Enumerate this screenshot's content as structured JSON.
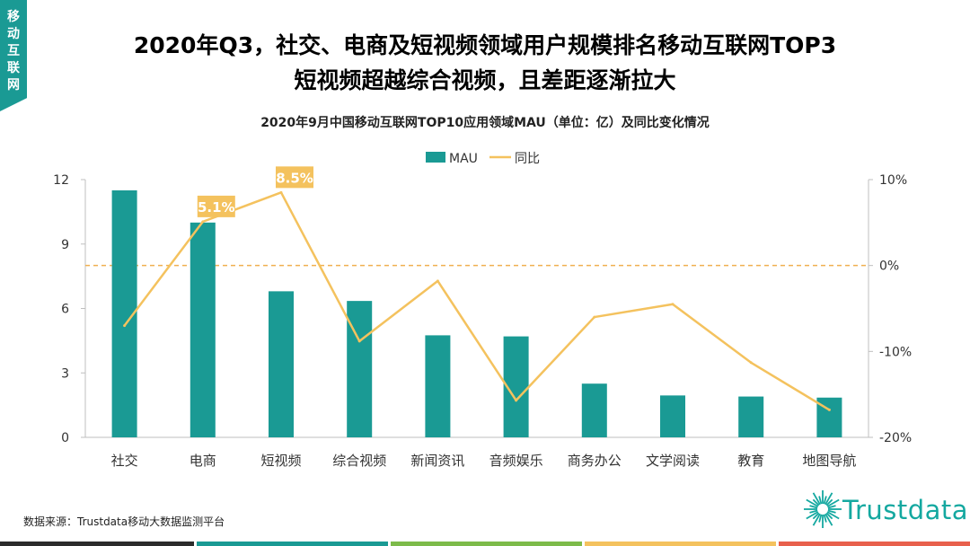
{
  "corner_tag": [
    "移",
    "动",
    "互",
    "联",
    "网"
  ],
  "headline_1": "2020年Q3，社交、电商及短视频领域用户规模排名移动互联网TOP3",
  "headline_2": "短视频超越综合视频，且差距逐渐拉大",
  "source": "数据来源：Trustdata移动大数据监测平台",
  "logo_text": "Trustdata",
  "colors": {
    "bar": "#1a9a94",
    "line": "#f4c25e",
    "label_bg": "#f4c25e",
    "zero_line": "#f0b050",
    "footer": [
      "#2b2b2b",
      "#1a9a94",
      "#7dbb4a",
      "#f4c25e",
      "#e8604c"
    ]
  },
  "chart_data": {
    "type": "bar",
    "title": "2020年9月中国移动互联网TOP10应用领域MAU（单位：亿）及同比变化情况",
    "categories": [
      "社交",
      "电商",
      "短视频",
      "综合视频",
      "新闻资讯",
      "音频娱乐",
      "商务办公",
      "文学阅读",
      "教育",
      "地图导航"
    ],
    "series": [
      {
        "name": "MAU",
        "type": "bar",
        "axis": "left",
        "values": [
          11.5,
          10.0,
          6.8,
          6.35,
          4.75,
          4.7,
          2.5,
          1.95,
          1.9,
          1.85
        ]
      },
      {
        "name": "同比",
        "type": "line",
        "axis": "right",
        "values": [
          -7.0,
          5.1,
          8.5,
          -8.8,
          -1.8,
          -15.7,
          -6.0,
          -4.5,
          -11.3,
          -16.8
        ]
      }
    ],
    "y_left": {
      "min": 0,
      "max": 12,
      "ticks": [
        0,
        3,
        6,
        9,
        12
      ]
    },
    "y_right": {
      "min": -20,
      "max": 10,
      "ticks": [
        "10%",
        "0%",
        "-10%",
        "-20%"
      ],
      "tick_values": [
        10,
        0,
        -10,
        -20
      ]
    },
    "data_labels": [
      {
        "category": "电商",
        "text": "5.1%"
      },
      {
        "category": "短视频",
        "text": "8.5%"
      }
    ],
    "legend": [
      "MAU",
      "同比"
    ],
    "legend_position": "top-center",
    "zero_reference_line": true
  }
}
